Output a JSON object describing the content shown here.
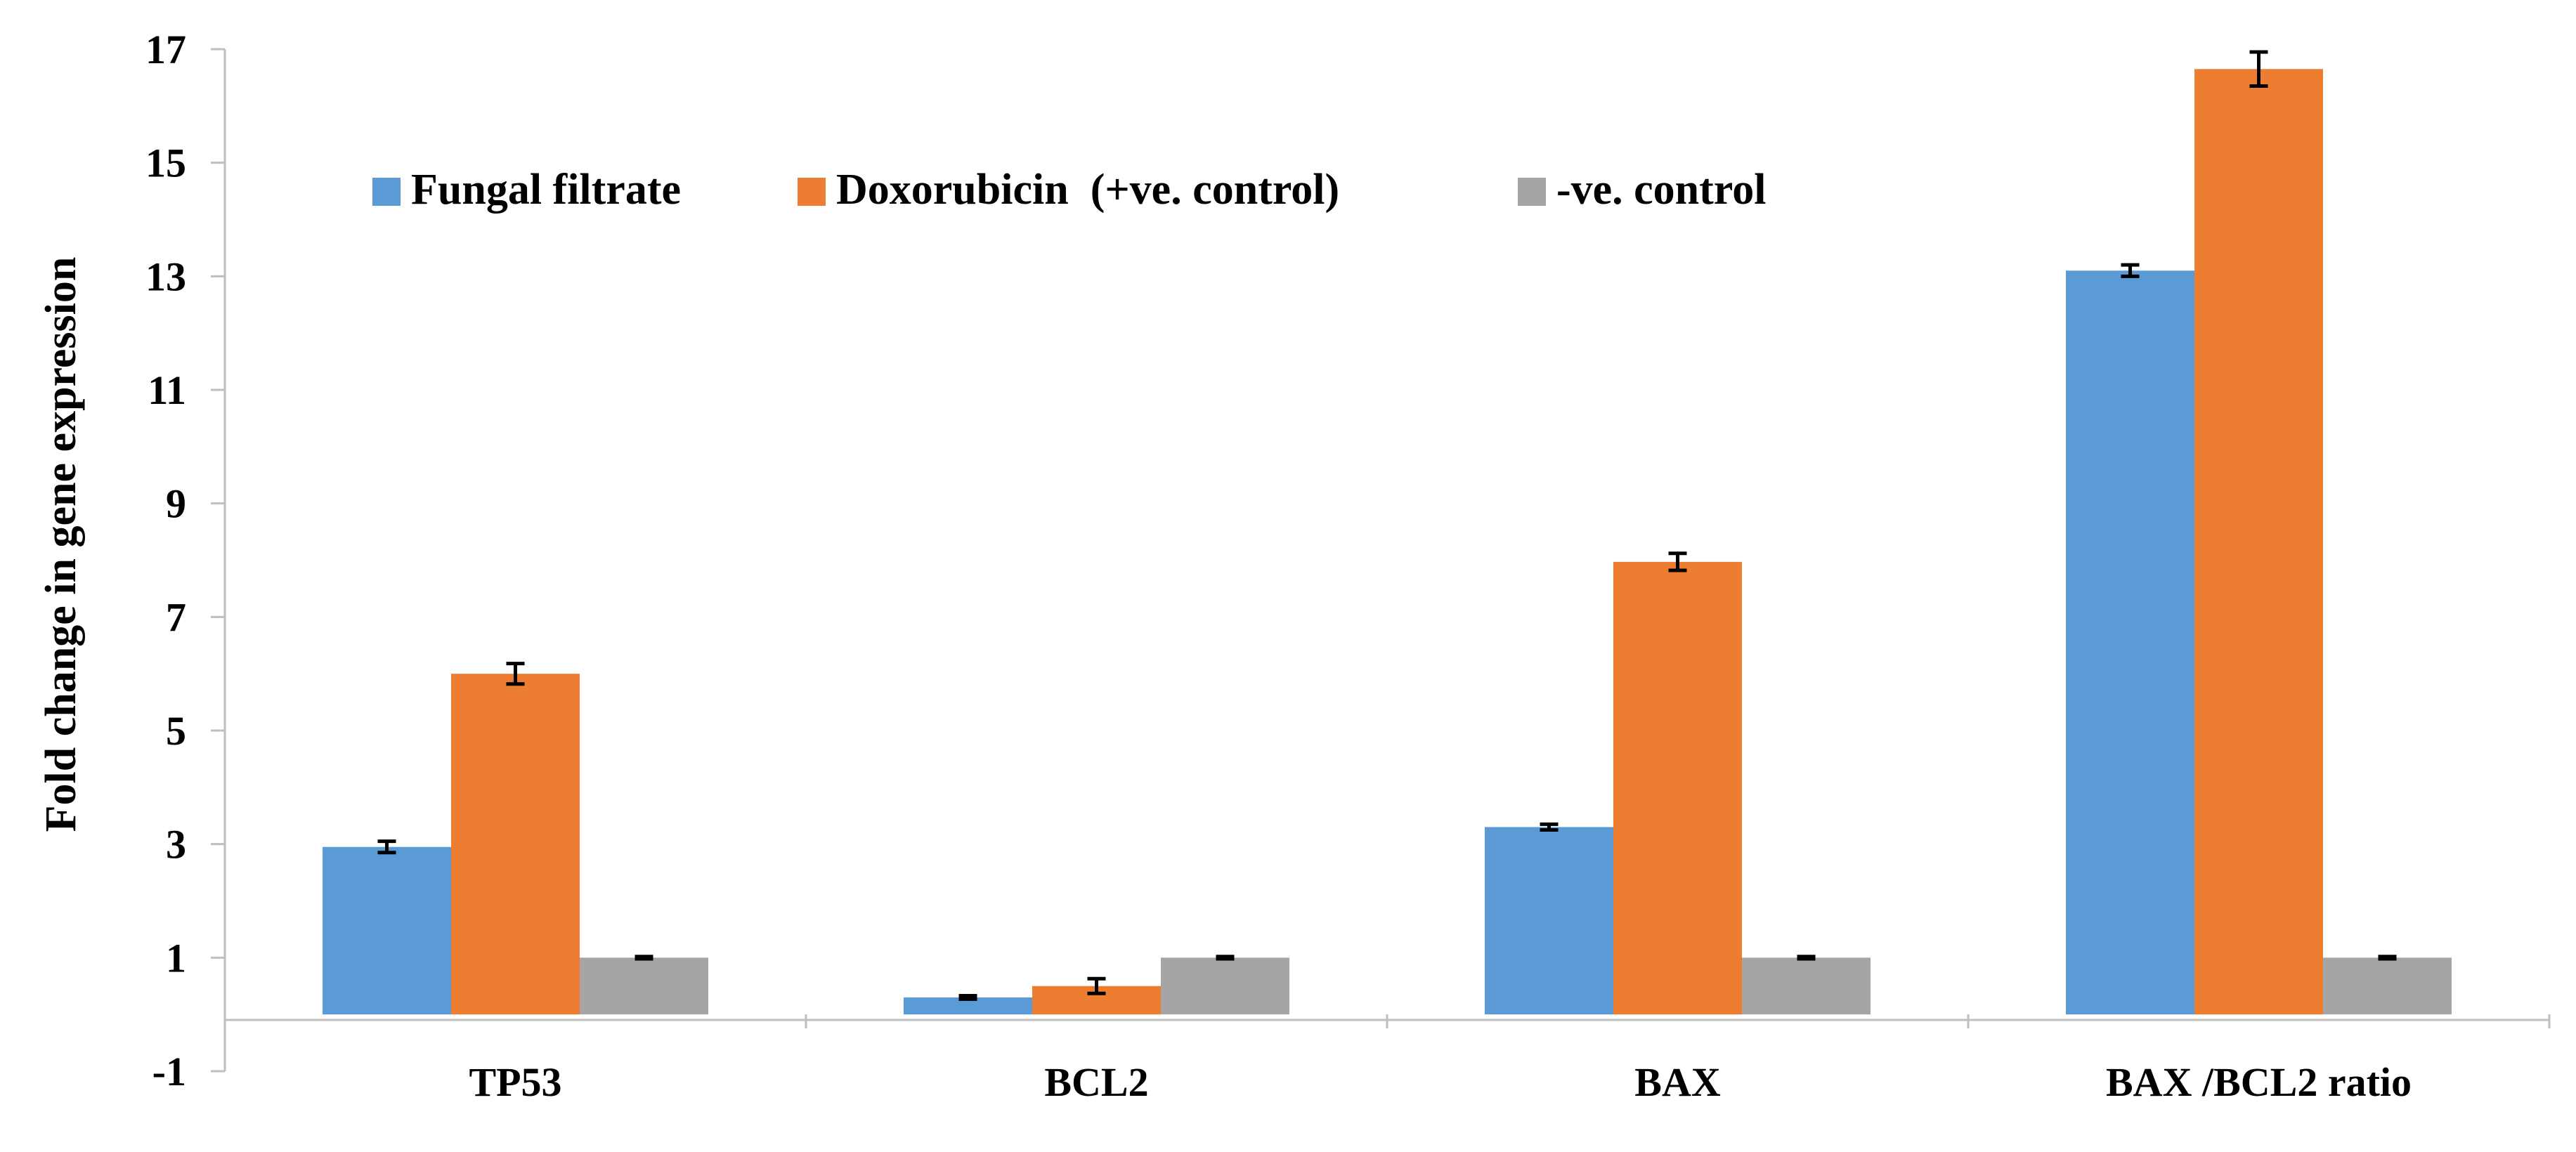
{
  "chart_data": {
    "type": "bar",
    "title": "",
    "xlabel": "",
    "ylabel": "Fold change in gene expression",
    "ylim": [
      -1,
      17
    ],
    "yticks": [
      -1,
      1,
      3,
      5,
      7,
      9,
      11,
      13,
      15,
      17
    ],
    "grid": false,
    "legend_position": "top-left",
    "categories": [
      "TP53",
      "BCL2",
      "BAX",
      "BAX /BCL2 ratio"
    ],
    "series": [
      {
        "name": "Fungal filtrate",
        "color": "#5b9bd5",
        "values": [
          2.95,
          0.3,
          3.3,
          13.1
        ],
        "errors": [
          0.1,
          0.03,
          0.05,
          0.1
        ]
      },
      {
        "name": "Doxorubicin  (+ve. control)",
        "color": "#ed7d31",
        "values": [
          6.0,
          0.5,
          7.97,
          16.65
        ],
        "errors": [
          0.18,
          0.13,
          0.15,
          0.3
        ]
      },
      {
        "name": "-ve. control",
        "color": "#a5a5a5",
        "values": [
          1.0,
          1.0,
          1.0,
          1.0
        ],
        "errors": [
          0.02,
          0.02,
          0.02,
          0.02
        ]
      }
    ]
  }
}
